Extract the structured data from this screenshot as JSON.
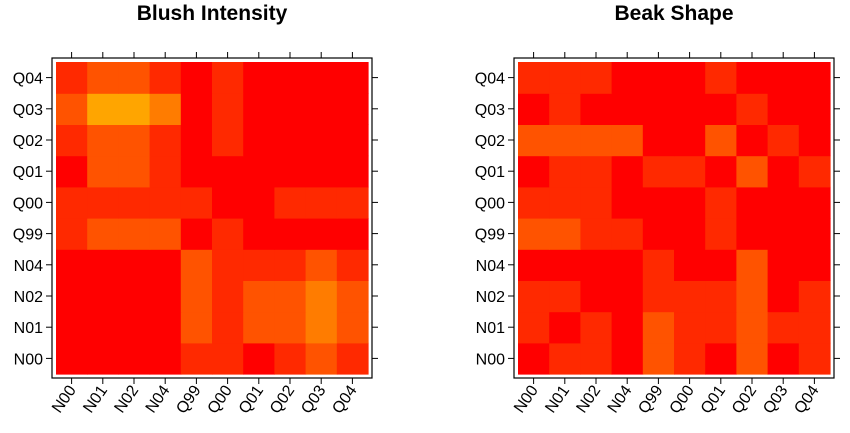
{
  "chart_data": [
    {
      "type": "heatmap",
      "title": "Blush Intensity",
      "x_categories": [
        "N00",
        "N01",
        "N02",
        "N04",
        "Q99",
        "Q00",
        "Q01",
        "Q02",
        "Q03",
        "Q04"
      ],
      "y_categories": [
        "N00",
        "N01",
        "N02",
        "N04",
        "Q99",
        "Q00",
        "Q01",
        "Q02",
        "Q03",
        "Q04"
      ],
      "color_scale": {
        "low": "#ff0000",
        "high": "#ffa500",
        "min": 0,
        "max": 4
      },
      "matrix": [
        [
          0,
          0,
          0,
          0,
          1,
          1,
          0,
          1,
          2,
          1
        ],
        [
          0,
          0,
          0,
          0,
          2,
          1,
          2,
          2,
          3,
          2
        ],
        [
          0,
          0,
          0,
          0,
          2,
          1,
          2,
          2,
          3,
          2
        ],
        [
          0,
          0,
          0,
          0,
          2,
          1,
          1,
          1,
          2,
          1
        ],
        [
          1,
          2,
          2,
          2,
          0,
          1,
          0,
          0,
          0,
          0
        ],
        [
          1,
          1,
          1,
          1,
          1,
          0,
          0,
          1,
          1,
          1
        ],
        [
          0,
          2,
          2,
          1,
          0,
          0,
          0,
          0,
          0,
          0
        ],
        [
          1,
          2,
          2,
          1,
          0,
          1,
          0,
          0,
          0,
          0
        ],
        [
          2,
          4,
          4,
          3,
          0,
          1,
          0,
          0,
          0,
          0
        ],
        [
          1,
          2,
          2,
          1,
          0,
          1,
          0,
          0,
          0,
          0
        ]
      ]
    },
    {
      "type": "heatmap",
      "title": "Beak Shape",
      "x_categories": [
        "N00",
        "N01",
        "N02",
        "N04",
        "Q99",
        "Q00",
        "Q01",
        "Q02",
        "Q03",
        "Q04"
      ],
      "y_categories": [
        "N00",
        "N01",
        "N02",
        "N04",
        "Q99",
        "Q00",
        "Q01",
        "Q02",
        "Q03",
        "Q04"
      ],
      "color_scale": {
        "low": "#ff0000",
        "high": "#ffa500",
        "min": 0,
        "max": 4
      },
      "matrix": [
        [
          0,
          1,
          1,
          0,
          2,
          1,
          0,
          2,
          0,
          1
        ],
        [
          1,
          0,
          1,
          0,
          2,
          1,
          1,
          2,
          1,
          1
        ],
        [
          1,
          1,
          0,
          0,
          1,
          1,
          1,
          2,
          0,
          1
        ],
        [
          0,
          0,
          0,
          0,
          1,
          0,
          0,
          2,
          0,
          0
        ],
        [
          2,
          2,
          1,
          1,
          0,
          0,
          1,
          0,
          0,
          0
        ],
        [
          1,
          1,
          1,
          0,
          0,
          0,
          1,
          0,
          0,
          0
        ],
        [
          0,
          1,
          1,
          0,
          1,
          1,
          0,
          2,
          0,
          1
        ],
        [
          2,
          2,
          2,
          2,
          0,
          0,
          2,
          0,
          1,
          0
        ],
        [
          0,
          1,
          0,
          0,
          0,
          0,
          0,
          1,
          0,
          0
        ],
        [
          1,
          1,
          1,
          0,
          0,
          0,
          1,
          0,
          0,
          0
        ]
      ]
    }
  ]
}
